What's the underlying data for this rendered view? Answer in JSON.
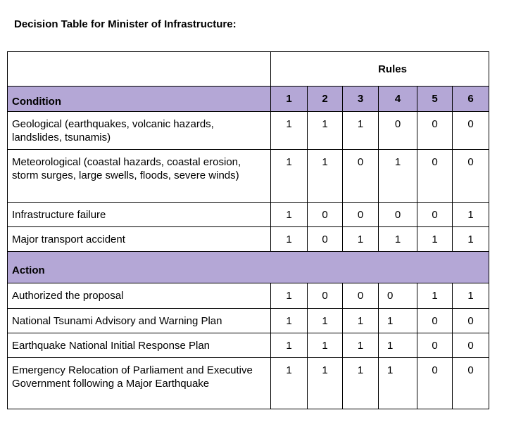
{
  "document": {
    "title": "Decision Table for Minister of Infrastructure:"
  },
  "colors": {
    "section_band": "#b4a7d6",
    "border": "#000000",
    "background": "#ffffff"
  },
  "table": {
    "rules_header": "Rules",
    "rule_numbers": [
      "1",
      "2",
      "3",
      "4",
      "5",
      "6"
    ],
    "condition_header": "Condition",
    "conditions": [
      {
        "label": "Geological (earthquakes, volcanic hazards, landslides, tsunamis)",
        "values": [
          "1",
          "1",
          "1",
          "0",
          "0",
          "0"
        ]
      },
      {
        "label": "Meteorological (coastal hazards, coastal erosion, storm surges, large swells, floods, severe winds)",
        "values": [
          "1",
          "1",
          "0",
          "1",
          "0",
          "0"
        ]
      },
      {
        "label": "Infrastructure failure",
        "values": [
          "1",
          "0",
          "0",
          "0",
          "0",
          "1"
        ]
      },
      {
        "label": "Major transport accident",
        "values": [
          "1",
          "0",
          "1",
          "1",
          "1",
          "1"
        ]
      }
    ],
    "action_header": "Action",
    "actions": [
      {
        "label": "Authorized the proposal",
        "values": [
          "1",
          "0",
          "0",
          "0",
          "1",
          "1"
        ]
      },
      {
        "label": "National Tsunami Advisory and Warning Plan",
        "values": [
          "1",
          "1",
          "1",
          "1",
          "0",
          "0"
        ]
      },
      {
        "label": "Earthquake National Initial Response Plan",
        "values": [
          "1",
          "1",
          "1",
          "1",
          "0",
          "0"
        ]
      },
      {
        "label": "Emergency Relocation of Parliament and Executive Government following a Major Earthquake",
        "values": [
          "1",
          "1",
          "1",
          "1",
          "0",
          "0"
        ]
      }
    ]
  }
}
